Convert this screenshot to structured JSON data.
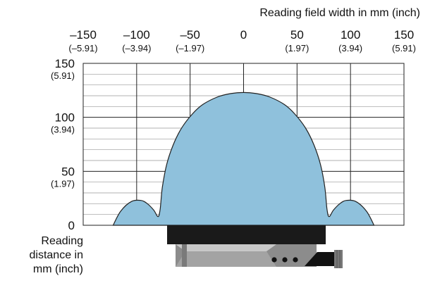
{
  "chart_data": {
    "type": "area",
    "title": "",
    "xlabel": "Reading field width in mm (inch)",
    "ylabel": [
      "Reading",
      "distance in",
      "mm (inch)"
    ],
    "x_ticks": [
      {
        "value": -150,
        "mm": "–150",
        "inch": "(–5.91)"
      },
      {
        "value": -100,
        "mm": "–100",
        "inch": "(–3.94)"
      },
      {
        "value": -50,
        "mm": "–50",
        "inch": "(–1.97)"
      },
      {
        "value": 0,
        "mm": "0",
        "inch": ""
      },
      {
        "value": 50,
        "mm": "50",
        "inch": "(1.97)"
      },
      {
        "value": 100,
        "mm": "100",
        "inch": "(3.94)"
      },
      {
        "value": 150,
        "mm": "150",
        "inch": "(5.91)"
      }
    ],
    "y_ticks": [
      {
        "value": 150,
        "mm": "150",
        "inch": "(5.91)"
      },
      {
        "value": 100,
        "mm": "100",
        "inch": "(3.94)"
      },
      {
        "value": 50,
        "mm": "50",
        "inch": "(1.97)"
      },
      {
        "value": 0,
        "mm": "0",
        "inch": ""
      }
    ],
    "xlim": [
      -150,
      150
    ],
    "ylim": [
      0,
      150
    ],
    "grid": true,
    "fill_color": "#8fc1dc",
    "outline_color": "#222222",
    "series": [
      {
        "x": [
          -122,
          -115,
          -105,
          -96,
          -90,
          -84,
          -80,
          -78,
          -76,
          -72,
          -66,
          -58,
          -48,
          -38,
          -24,
          -12,
          0,
          12,
          24,
          38,
          48,
          58,
          66,
          72,
          76,
          78,
          80,
          84,
          90,
          96,
          105,
          115,
          122
        ],
        "y": [
          0,
          13,
          22,
          23,
          20,
          14,
          8,
          15,
          35,
          56,
          74,
          90,
          103,
          112,
          119,
          122,
          123,
          122,
          119,
          112,
          103,
          90,
          74,
          56,
          35,
          15,
          8,
          14,
          20,
          23,
          22,
          13,
          0
        ]
      }
    ],
    "device_label": "scanner",
    "device_colors": {
      "body": "#1a1a1a",
      "housing": "#8c8c8c",
      "housing_light": "#c8c8c8",
      "connector": "#777777"
    }
  }
}
